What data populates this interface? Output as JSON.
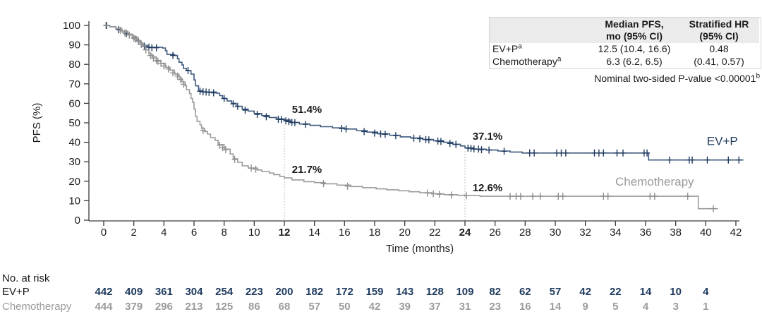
{
  "colors": {
    "evp_text": "#1F3B60",
    "evp_line": "#3D5A7E",
    "chemo_line": "#9B9B9B",
    "chemo_text": "#9B9B9B",
    "axis": "#3a3a3a",
    "annotation": "#1a1a1a",
    "dropline": "#aaaaaa",
    "table_header_bg": "#ebebeb",
    "table_border": "#d6d6d6"
  },
  "results_table": {
    "col1_header_line1": "Median PFS,",
    "col1_header_line2": "mo (95% CI)",
    "col2_header_line1": "Stratified HR",
    "col2_header_line2": "(95% CI)",
    "rows": [
      {
        "label": "EV+P",
        "sup": "a",
        "median": "12.5 (10.4, 16.6)",
        "hr": "0.48"
      },
      {
        "label": "Chemotherapy",
        "sup": "a",
        "median": "6.3 (6.2, 6.5)",
        "hr": "(0.41, 0.57)"
      }
    ]
  },
  "pvalue": {
    "text": "Nominal two-sided P-value <0.00001",
    "sup": "b"
  },
  "chart_data": {
    "type": "line",
    "subtype": "kaplan-meier-step",
    "title": "",
    "xlabel": "Time (months)",
    "ylabel": "PFS (%)",
    "xlim": [
      0,
      42
    ],
    "ylim": [
      0,
      100
    ],
    "xticks": [
      0,
      2,
      4,
      6,
      8,
      10,
      12,
      14,
      16,
      18,
      20,
      22,
      24,
      26,
      28,
      30,
      32,
      34,
      36,
      38,
      40,
      42
    ],
    "bold_xticks": [
      12,
      24
    ],
    "yticks": [
      0,
      10,
      20,
      30,
      40,
      50,
      60,
      70,
      80,
      90,
      100
    ],
    "grid": false,
    "legend_position": "curve-end-labels",
    "droplines": [
      {
        "month": 12,
        "top_pct": 48.8
      },
      {
        "month": 24,
        "top_pct": 35.4
      }
    ],
    "annotations": [
      {
        "text": "51.4%",
        "month": 13.5,
        "pct": 55.0
      },
      {
        "text": "21.7%",
        "month": 13.5,
        "pct": 24.3
      },
      {
        "text": "37.1%",
        "month": 25.5,
        "pct": 41.3
      },
      {
        "text": "12.6%",
        "month": 25.5,
        "pct": 14.9
      }
    ],
    "series": [
      {
        "name": "EV+P",
        "line_color": "#3D5A7E",
        "censor_color": "#1F3B60",
        "label_color": "#1F3B60",
        "end_label": {
          "month": 41.1,
          "pct": 38.5
        },
        "median_pfs": "12.5 (10.4, 16.6)",
        "pct_at_12mo": 51.4,
        "pct_at_24mo": 37.1,
        "steps": [
          [
            0,
            100
          ],
          [
            0.4,
            99.3
          ],
          [
            0.8,
            98.4
          ],
          [
            1.2,
            97
          ],
          [
            1.6,
            95.5
          ],
          [
            1.9,
            94.2
          ],
          [
            2.2,
            92.4
          ],
          [
            2.4,
            91
          ],
          [
            2.6,
            89.7
          ],
          [
            2.9,
            88.8
          ],
          [
            3.9,
            88.4
          ],
          [
            4.1,
            87
          ],
          [
            4.2,
            85.1
          ],
          [
            4.7,
            84.6
          ],
          [
            4.9,
            82.9
          ],
          [
            5,
            81.1
          ],
          [
            5.2,
            79.7
          ],
          [
            5.3,
            77.9
          ],
          [
            5.5,
            76.8
          ],
          [
            5.8,
            75
          ],
          [
            6,
            72
          ],
          [
            6.1,
            69
          ],
          [
            6.3,
            66.5
          ],
          [
            6.6,
            65.8
          ],
          [
            7.5,
            65.2
          ],
          [
            7.7,
            64
          ],
          [
            7.9,
            62.5
          ],
          [
            8.2,
            61.2
          ],
          [
            8.5,
            60
          ],
          [
            8.8,
            58.5
          ],
          [
            9.2,
            57
          ],
          [
            9.6,
            56
          ],
          [
            10,
            54.8
          ],
          [
            10.5,
            53.7
          ],
          [
            11,
            52.7
          ],
          [
            11.5,
            52
          ],
          [
            12,
            51.4
          ],
          [
            12.4,
            50.2
          ],
          [
            13,
            49.4
          ],
          [
            13.7,
            48.7
          ],
          [
            14.4,
            48
          ],
          [
            15.2,
            47.4
          ],
          [
            16,
            46.8
          ],
          [
            16.8,
            46
          ],
          [
            17.5,
            45.2
          ],
          [
            18.2,
            44.4
          ],
          [
            19,
            43.6
          ],
          [
            19.7,
            42.8
          ],
          [
            20.4,
            42.2
          ],
          [
            21.2,
            41.5
          ],
          [
            21.9,
            40.8
          ],
          [
            22.6,
            40
          ],
          [
            23.2,
            39
          ],
          [
            23.7,
            38.1
          ],
          [
            24,
            37.1
          ],
          [
            24.6,
            36.5
          ],
          [
            25.4,
            36
          ],
          [
            26.2,
            35.5
          ],
          [
            27,
            35
          ],
          [
            27.8,
            34.5
          ],
          [
            36.2,
            30.9
          ],
          [
            42.5,
            30.9
          ]
        ],
        "censors": [
          [
            0.2,
            100
          ],
          [
            1,
            97.8
          ],
          [
            1.5,
            95.8
          ],
          [
            2,
            93.5
          ],
          [
            2.3,
            92
          ],
          [
            2.5,
            90.3
          ],
          [
            2.7,
            89.3
          ],
          [
            3,
            88.8
          ],
          [
            3.2,
            88.6
          ],
          [
            3.5,
            88.5
          ],
          [
            4.6,
            84.6
          ],
          [
            5.6,
            76.8
          ],
          [
            6.4,
            66.2
          ],
          [
            6.6,
            65.9
          ],
          [
            6.8,
            65.8
          ],
          [
            7,
            65.6
          ],
          [
            7.3,
            65.4
          ],
          [
            8,
            62.5
          ],
          [
            8.6,
            59.7
          ],
          [
            8.9,
            58.4
          ],
          [
            9.4,
            56.5
          ],
          [
            10.2,
            54.3
          ],
          [
            10.8,
            53.1
          ],
          [
            11.6,
            51.8
          ],
          [
            11.8,
            51.7
          ],
          [
            12.1,
            51
          ],
          [
            12.3,
            50.6
          ],
          [
            12.5,
            50.2
          ],
          [
            12.7,
            50.1
          ],
          [
            13.4,
            49.2
          ],
          [
            15.8,
            47.1
          ],
          [
            16.1,
            46.9
          ],
          [
            17.3,
            45.5
          ],
          [
            18,
            44.7
          ],
          [
            18.4,
            44.3
          ],
          [
            18.7,
            44.1
          ],
          [
            19.4,
            43.4
          ],
          [
            20.6,
            42.1
          ],
          [
            21,
            41.8
          ],
          [
            21.4,
            41.4
          ],
          [
            21.6,
            41.2
          ],
          [
            22.2,
            40.6
          ],
          [
            22.4,
            40.4
          ],
          [
            23,
            39.4
          ],
          [
            23.4,
            38.9
          ],
          [
            24.2,
            37
          ],
          [
            24.4,
            36.9
          ],
          [
            24.6,
            36.6
          ],
          [
            24.9,
            36.5
          ],
          [
            25.1,
            36.2
          ],
          [
            25.6,
            36
          ],
          [
            26.6,
            35.4
          ],
          [
            28.3,
            34.5
          ],
          [
            28.6,
            34.5
          ],
          [
            30.1,
            34.5
          ],
          [
            30.4,
            34.5
          ],
          [
            30.7,
            34.5
          ],
          [
            32.6,
            34.5
          ],
          [
            32.9,
            34.5
          ],
          [
            33.2,
            34.5
          ],
          [
            34.1,
            34.5
          ],
          [
            34.5,
            34.5
          ],
          [
            35.9,
            34.5
          ],
          [
            36.1,
            34.5
          ],
          [
            37.6,
            30.9
          ],
          [
            38.9,
            30.9
          ],
          [
            39.1,
            30.9
          ],
          [
            40.1,
            30.9
          ],
          [
            41.5,
            30.9
          ],
          [
            42.2,
            30.9
          ]
        ]
      },
      {
        "name": "Chemotherapy",
        "line_color": "#9B9B9B",
        "censor_color": "#8F8F8F",
        "label_color": "#9B9B9B",
        "end_label": {
          "month": 36.6,
          "pct": 17.8
        },
        "median_pfs": "6.3 (6.2, 6.5)",
        "pct_at_12mo": 21.7,
        "pct_at_24mo": 12.6,
        "steps": [
          [
            0,
            100
          ],
          [
            0.4,
            99.3
          ],
          [
            0.8,
            98.4
          ],
          [
            1.2,
            97
          ],
          [
            1.6,
            95.5
          ],
          [
            1.9,
            94.2
          ],
          [
            2.2,
            92.4
          ],
          [
            2.4,
            91
          ],
          [
            2.6,
            89.5
          ],
          [
            2.8,
            87.5
          ],
          [
            3,
            85.5
          ],
          [
            3.2,
            83.8
          ],
          [
            3.5,
            82
          ],
          [
            3.8,
            80.5
          ],
          [
            4.1,
            78.5
          ],
          [
            4.4,
            77
          ],
          [
            4.7,
            75
          ],
          [
            5,
            73
          ],
          [
            5.2,
            71
          ],
          [
            5.4,
            69
          ],
          [
            5.5,
            67
          ],
          [
            5.7,
            65
          ],
          [
            5.8,
            62.5
          ],
          [
            5.9,
            60.5
          ],
          [
            6,
            57
          ],
          [
            6.1,
            53.3
          ],
          [
            6.2,
            50.7
          ],
          [
            6.4,
            48.9
          ],
          [
            6.5,
            47.1
          ],
          [
            6.7,
            45.5
          ],
          [
            6.9,
            44.2
          ],
          [
            7.1,
            42.4
          ],
          [
            7.4,
            41
          ],
          [
            7.6,
            38.8
          ],
          [
            8,
            36.5
          ],
          [
            8.4,
            34
          ],
          [
            8.6,
            31.5
          ],
          [
            8.9,
            29.7
          ],
          [
            9.2,
            27.9
          ],
          [
            9.6,
            26.8
          ],
          [
            10.2,
            25.8
          ],
          [
            10.5,
            25
          ],
          [
            11,
            24.2
          ],
          [
            11.3,
            23.4
          ],
          [
            11.7,
            22.5
          ],
          [
            12,
            21.7
          ],
          [
            12.5,
            20.7
          ],
          [
            13.3,
            19.8
          ],
          [
            14,
            19.3
          ],
          [
            14.7,
            18.7
          ],
          [
            15.5,
            18
          ],
          [
            16.4,
            17.3
          ],
          [
            17.2,
            16.7
          ],
          [
            18.1,
            16.1
          ],
          [
            18.8,
            15.6
          ],
          [
            19.6,
            15.1
          ],
          [
            20.3,
            14.6
          ],
          [
            21,
            14.1
          ],
          [
            21.8,
            13.6
          ],
          [
            22.6,
            13.1
          ],
          [
            23.5,
            12.8
          ],
          [
            24,
            12.6
          ],
          [
            25,
            12.3
          ],
          [
            39.5,
            5.9
          ],
          [
            40.8,
            5.9
          ]
        ],
        "censors": [
          [
            0.15,
            100
          ],
          [
            1.1,
            97.5
          ],
          [
            1.4,
            96.2
          ],
          [
            1.7,
            95
          ],
          [
            2,
            93.5
          ],
          [
            2.1,
            93
          ],
          [
            2.3,
            91.8
          ],
          [
            2.5,
            90.3
          ],
          [
            2.8,
            87.5
          ],
          [
            3.1,
            84.6
          ],
          [
            3.3,
            83.2
          ],
          [
            3.5,
            82
          ],
          [
            3.6,
            81.6
          ],
          [
            3.8,
            80.5
          ],
          [
            4,
            79.2
          ],
          [
            4.3,
            77.6
          ],
          [
            4.6,
            75.6
          ],
          [
            4.9,
            74
          ],
          [
            5.1,
            72.2
          ],
          [
            5.3,
            69.8
          ],
          [
            6.6,
            46
          ],
          [
            7.7,
            38.5
          ],
          [
            7.9,
            37.2
          ],
          [
            8.1,
            36.2
          ],
          [
            8.7,
            31.2
          ],
          [
            9.8,
            26.7
          ],
          [
            10.1,
            26.2
          ],
          [
            14.6,
            18.8
          ],
          [
            16.2,
            17.5
          ],
          [
            21.5,
            13.9
          ],
          [
            21.9,
            13.6
          ],
          [
            22.3,
            13.3
          ],
          [
            23.1,
            12.9
          ],
          [
            24.1,
            12.6
          ],
          [
            27,
            12.3
          ],
          [
            27.4,
            12.3
          ],
          [
            27.7,
            12.3
          ],
          [
            28.5,
            12.3
          ],
          [
            29,
            12.3
          ],
          [
            30.2,
            12.3
          ],
          [
            30.5,
            12.3
          ],
          [
            33.2,
            12.3
          ],
          [
            33.5,
            12.3
          ],
          [
            36.3,
            12.3
          ],
          [
            36.6,
            12.3
          ],
          [
            38.8,
            12.3
          ],
          [
            40.5,
            5.9
          ]
        ]
      }
    ],
    "at_risk": {
      "title": "No. at risk",
      "months": [
        0,
        2,
        4,
        6,
        8,
        10,
        12,
        14,
        16,
        18,
        20,
        22,
        24,
        26,
        28,
        30,
        32,
        34,
        36,
        38,
        40
      ],
      "rows": [
        {
          "label": "EV+P",
          "label_color": "#1a1a1a",
          "value_color": "#1F3B60",
          "values": [
            442,
            409,
            361,
            304,
            254,
            223,
            200,
            182,
            172,
            159,
            143,
            128,
            109,
            82,
            62,
            57,
            42,
            22,
            14,
            10,
            4
          ]
        },
        {
          "label": "Chemotherapy",
          "label_color": "#9B9B9B",
          "value_color": "#9B9B9B",
          "values": [
            444,
            379,
            296,
            213,
            125,
            86,
            68,
            57,
            50,
            42,
            39,
            37,
            31,
            23,
            16,
            14,
            9,
            5,
            4,
            3,
            1
          ]
        }
      ]
    }
  }
}
